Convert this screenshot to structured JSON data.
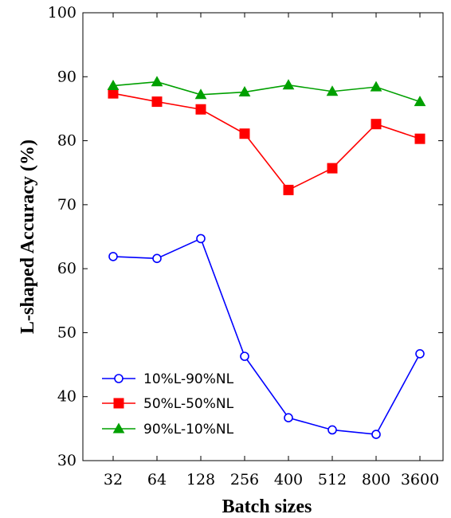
{
  "chart_data": {
    "type": "line",
    "xlabel": "Batch sizes",
    "ylabel": "L-shaped Accuracy (%)",
    "ylim": [
      30,
      100
    ],
    "yticks": [
      30,
      40,
      50,
      60,
      70,
      80,
      90,
      100
    ],
    "categories": [
      "32",
      "64",
      "128",
      "256",
      "400",
      "512",
      "800",
      "3600"
    ],
    "grid": false,
    "legend_position": "bottom-left",
    "series": [
      {
        "name": "10%L-90%NL",
        "color": "#0000ff",
        "marker": "circle-open",
        "values": [
          61.9,
          61.6,
          64.7,
          46.3,
          36.7,
          34.8,
          34.1,
          46.7
        ]
      },
      {
        "name": "50%L-50%NL",
        "color": "#ff0000",
        "marker": "square-filled",
        "values": [
          87.4,
          86.1,
          84.9,
          81.1,
          72.3,
          75.7,
          82.6,
          80.3
        ]
      },
      {
        "name": "90%L-10%NL",
        "color": "#00a000",
        "marker": "triangle-filled",
        "values": [
          88.6,
          89.2,
          87.2,
          87.6,
          88.7,
          87.7,
          88.4,
          86.1
        ]
      }
    ]
  }
}
